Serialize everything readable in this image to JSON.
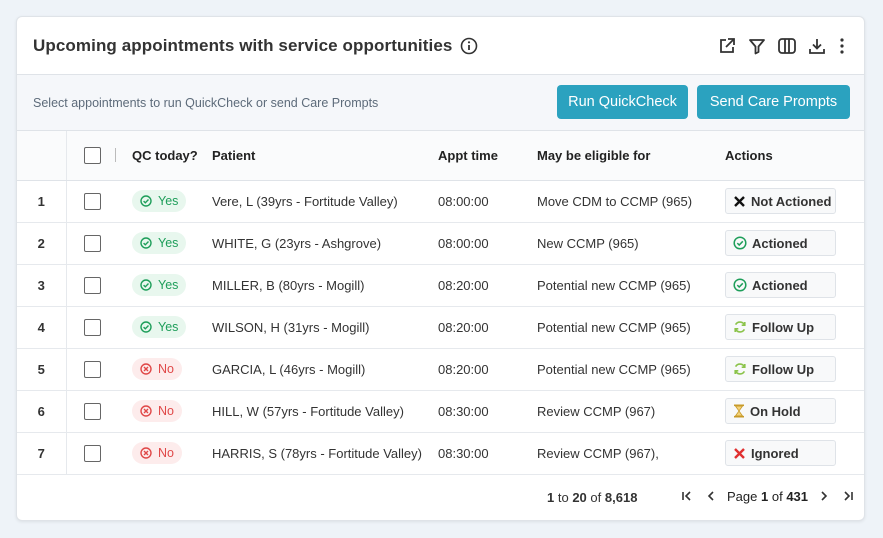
{
  "header": {
    "title": "Upcoming appointments with service opportunities",
    "icons": [
      "info-icon",
      "external-link-icon",
      "filter-icon",
      "columns-icon",
      "download-icon",
      "more-vertical-icon"
    ]
  },
  "toolbar": {
    "hint": "Select appointments to run QuickCheck or send Care Prompts",
    "run_quickcheck": "Run QuickCheck",
    "send_care_prompts": "Send Care Prompts"
  },
  "columns": {
    "qc_today": "QC today?",
    "patient": "Patient",
    "appt_time": "Appt time",
    "eligible": "May be eligible for",
    "actions": "Actions"
  },
  "rows": [
    {
      "idx": "1",
      "qc": "Yes",
      "patient": "Vere, L (39yrs - Fortitude Valley)",
      "time": "08:00:00",
      "eligible": "Move CDM to CCMP (965)",
      "action": "Not Actioned",
      "action_icon": "x-icon"
    },
    {
      "idx": "2",
      "qc": "Yes",
      "patient": "WHITE, G (23yrs - Ashgrove)",
      "time": "08:00:00",
      "eligible": "New CCMP (965)",
      "action": "Actioned",
      "action_icon": "check-circle-icon"
    },
    {
      "idx": "3",
      "qc": "Yes",
      "patient": "MILLER, B (80yrs - Mogill)",
      "time": "08:20:00",
      "eligible": "Potential new CCMP (965)",
      "action": "Actioned",
      "action_icon": "check-circle-icon"
    },
    {
      "idx": "4",
      "qc": "Yes",
      "patient": "WILSON, H (31yrs - Mogill)",
      "time": "08:20:00",
      "eligible": "Potential new CCMP (965)",
      "action": "Follow Up",
      "action_icon": "refresh-icon"
    },
    {
      "idx": "5",
      "qc": "No",
      "patient": "GARCIA, L (46yrs - Mogill)",
      "time": "08:20:00",
      "eligible": "Potential new CCMP (965)",
      "action": "Follow Up",
      "action_icon": "refresh-icon"
    },
    {
      "idx": "6",
      "qc": "No",
      "patient": "HILL, W (57yrs - Fortitude Valley)",
      "time": "08:30:00",
      "eligible": "Review CCMP (967)",
      "action": "On Hold",
      "action_icon": "hourglass-icon"
    },
    {
      "idx": "7",
      "qc": "No",
      "patient": "HARRIS, S (78yrs - Fortitude Valley)",
      "time": "08:30:00",
      "eligible": "Review CCMP (967),",
      "action": "Ignored",
      "action_icon": "x-red-icon"
    }
  ],
  "footer": {
    "from": "1",
    "to_word": "to",
    "to": "20",
    "of_word": "of",
    "total": "8,618",
    "page_word": "Page",
    "page": "1",
    "page_of_word": "of",
    "pages": "431"
  },
  "colors": {
    "accent": "#2ba2bf",
    "yes_green": "#1e9e5a",
    "no_red": "#e04848"
  }
}
